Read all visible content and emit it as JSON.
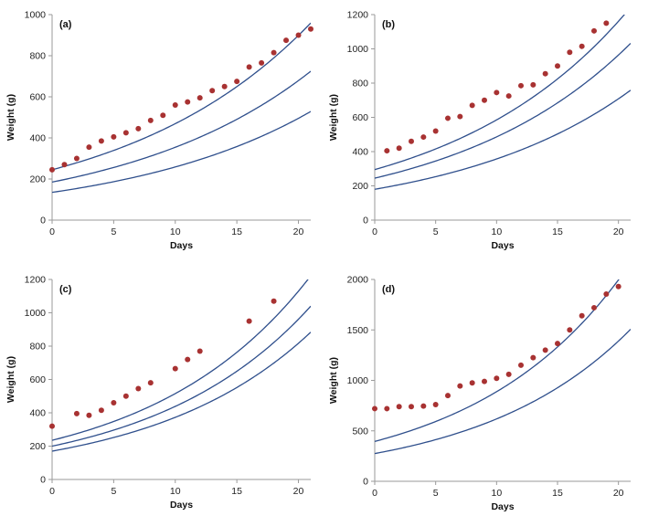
{
  "chart_data": [
    {
      "type": "scatter",
      "panel_label": "(a)",
      "xlabel": "Days",
      "ylabel": "Weight  (g)",
      "xlim": [
        0,
        21
      ],
      "ylim": [
        0,
        1000
      ],
      "xticks": [
        0,
        5,
        10,
        15,
        20
      ],
      "yticks": [
        0,
        200,
        400,
        600,
        800,
        1000
      ],
      "points": [
        [
          0,
          245
        ],
        [
          1,
          270
        ],
        [
          2,
          300
        ],
        [
          3,
          355
        ],
        [
          4,
          385
        ],
        [
          5,
          405
        ],
        [
          6,
          425
        ],
        [
          7,
          445
        ],
        [
          8,
          485
        ],
        [
          9,
          510
        ],
        [
          10,
          560
        ],
        [
          11,
          575
        ],
        [
          12,
          595
        ],
        [
          13,
          630
        ],
        [
          14,
          650
        ],
        [
          15,
          675
        ],
        [
          16,
          745
        ],
        [
          17,
          765
        ],
        [
          18,
          815
        ],
        [
          19,
          875
        ],
        [
          20,
          900
        ],
        [
          21,
          930
        ]
      ],
      "curves": [
        {
          "start": 245,
          "rate": 0.065
        },
        {
          "start": 185,
          "rate": 0.065
        },
        {
          "start": 135,
          "rate": 0.065
        }
      ]
    },
    {
      "type": "scatter",
      "panel_label": "(b)",
      "xlabel": "Days",
      "ylabel": "Weight  (g)",
      "xlim": [
        0,
        21
      ],
      "ylim": [
        0,
        1200
      ],
      "xticks": [
        0,
        5,
        10,
        15,
        20
      ],
      "yticks": [
        0,
        200,
        400,
        600,
        800,
        1000,
        1200
      ],
      "points": [
        [
          1,
          405
        ],
        [
          2,
          420
        ],
        [
          3,
          460
        ],
        [
          4,
          485
        ],
        [
          5,
          520
        ],
        [
          6,
          595
        ],
        [
          7,
          605
        ],
        [
          8,
          670
        ],
        [
          9,
          700
        ],
        [
          10,
          745
        ],
        [
          11,
          725
        ],
        [
          12,
          785
        ],
        [
          13,
          790
        ],
        [
          14,
          855
        ],
        [
          15,
          900
        ],
        [
          16,
          980
        ],
        [
          17,
          1015
        ],
        [
          18,
          1105
        ],
        [
          19,
          1150
        ]
      ],
      "curves": [
        {
          "start": 295,
          "rate": 0.0685
        },
        {
          "start": 245,
          "rate": 0.0685
        },
        {
          "start": 180,
          "rate": 0.0685
        }
      ]
    },
    {
      "type": "scatter",
      "panel_label": "(c)",
      "xlabel": "Days",
      "ylabel": "Weight  (g)",
      "xlim": [
        0,
        21
      ],
      "ylim": [
        0,
        1200
      ],
      "xticks": [
        0,
        5,
        10,
        15,
        20
      ],
      "yticks": [
        0,
        200,
        400,
        600,
        800,
        1000,
        1200
      ],
      "points": [
        [
          0,
          320
        ],
        [
          2,
          395
        ],
        [
          3,
          385
        ],
        [
          4,
          415
        ],
        [
          5,
          460
        ],
        [
          6,
          500
        ],
        [
          7,
          545
        ],
        [
          8,
          580
        ],
        [
          10,
          665
        ],
        [
          11,
          720
        ],
        [
          12,
          770
        ],
        [
          16,
          950
        ],
        [
          18,
          1070
        ]
      ],
      "curves": [
        {
          "start": 235,
          "rate": 0.0785
        },
        {
          "start": 200,
          "rate": 0.0785
        },
        {
          "start": 170,
          "rate": 0.0785
        }
      ]
    },
    {
      "type": "scatter",
      "panel_label": "(d)",
      "xlabel": "Days",
      "ylabel": "Weight  (g)",
      "xlim": [
        0,
        21
      ],
      "ylim": [
        0,
        2000
      ],
      "xticks": [
        0,
        5,
        10,
        15,
        20
      ],
      "yticks": [
        0,
        500,
        1000,
        1500,
        2000
      ],
      "points": [
        [
          0,
          720
        ],
        [
          1,
          720
        ],
        [
          2,
          740
        ],
        [
          3,
          740
        ],
        [
          4,
          745
        ],
        [
          5,
          760
        ],
        [
          6,
          850
        ],
        [
          7,
          945
        ],
        [
          8,
          975
        ],
        [
          9,
          990
        ],
        [
          10,
          1020
        ],
        [
          11,
          1060
        ],
        [
          12,
          1150
        ],
        [
          13,
          1225
        ],
        [
          14,
          1300
        ],
        [
          15,
          1365
        ],
        [
          16,
          1500
        ],
        [
          17,
          1640
        ],
        [
          18,
          1720
        ],
        [
          19,
          1855
        ],
        [
          20,
          1930
        ]
      ],
      "curves": [
        {
          "start": 395,
          "rate": 0.081
        },
        {
          "start": 275,
          "rate": 0.081
        }
      ]
    }
  ]
}
